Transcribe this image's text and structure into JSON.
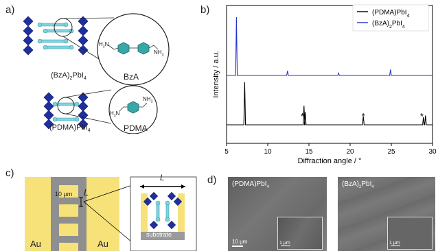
{
  "panels": {
    "a": {
      "letter": "a)",
      "bza": {
        "name_prefix": "(BzA)",
        "name_sub1": "2",
        "name_mid": "PbI",
        "name_sub2": "4",
        "molecule_label": "BzA"
      },
      "pdma": {
        "name_prefix": "(PDMA)PbI",
        "name_sub": "4",
        "molecule_label": "PDMA"
      },
      "chem": {
        "h3n": "H",
        "h3n_sub": "3",
        "n": "N",
        "nh3": "NH",
        "nh3_sub": "3",
        "plus": "+"
      }
    },
    "b": {
      "letter": "b)"
    },
    "c": {
      "letter": "c)",
      "electrode_left": "Au",
      "electrode_right": "Au",
      "gap_value": "10 μm",
      "gap_symbol": "L",
      "inset_symbol": "L",
      "substrate_label": "substrate"
    },
    "d": {
      "letter": "d)",
      "images": [
        {
          "label_prefix": "(PDMA)PbI",
          "label_sub": "4",
          "label_rest": "",
          "scale_main": "10 μm",
          "scale_inset": "1 μm"
        },
        {
          "label_prefix": "(BzA)",
          "label_sub": "2",
          "label_rest": "PbI",
          "label_sub2": "4",
          "scale_main": "10 μm",
          "scale_inset": "1 μm"
        }
      ]
    }
  },
  "colors": {
    "octahedron": "#1f2f9e",
    "spacer": "#7fd3df",
    "ring": "#3aa6a6",
    "gold": "#f7e27a",
    "gray": "#8f8f8f",
    "series_bza": "#2233cc",
    "series_pdma": "#000000"
  },
  "chart_data": {
    "type": "line",
    "xlabel": "Diffraction angle / °",
    "ylabel": "Intensity / a.u.",
    "xlim": [
      5,
      30
    ],
    "xticks": [
      5,
      10,
      15,
      20,
      25,
      30
    ],
    "legend": "top-right",
    "series": [
      {
        "name": "(PDMA)PbI4",
        "legend_prefix": "(PDMA)PbI",
        "legend_sub": "4",
        "color": "#000000",
        "peaks": [
          {
            "x": 7.2,
            "h": 1.0
          },
          {
            "x": 14.4,
            "h": 0.45
          },
          {
            "x": 14.55,
            "h": 0.3
          },
          {
            "x": 21.6,
            "h": 0.2
          },
          {
            "x": 28.9,
            "h": 0.18
          },
          {
            "x": 29.15,
            "h": 0.22
          }
        ],
        "annotations": [
          {
            "x": 14.2,
            "text": "*"
          },
          {
            "x": 21.6,
            "text": "*"
          },
          {
            "x": 28.7,
            "text": "*"
          }
        ]
      },
      {
        "name": "(BzA)2PbI4",
        "legend_prefix": "(BzA)",
        "legend_sub": "2",
        "legend_rest": "PbI",
        "legend_sub2": "4",
        "color": "#2233cc",
        "peaks": [
          {
            "x": 6.2,
            "h": 1.0
          },
          {
            "x": 12.4,
            "h": 0.08
          },
          {
            "x": 18.6,
            "h": 0.04
          },
          {
            "x": 24.9,
            "h": 0.1
          }
        ]
      }
    ]
  }
}
